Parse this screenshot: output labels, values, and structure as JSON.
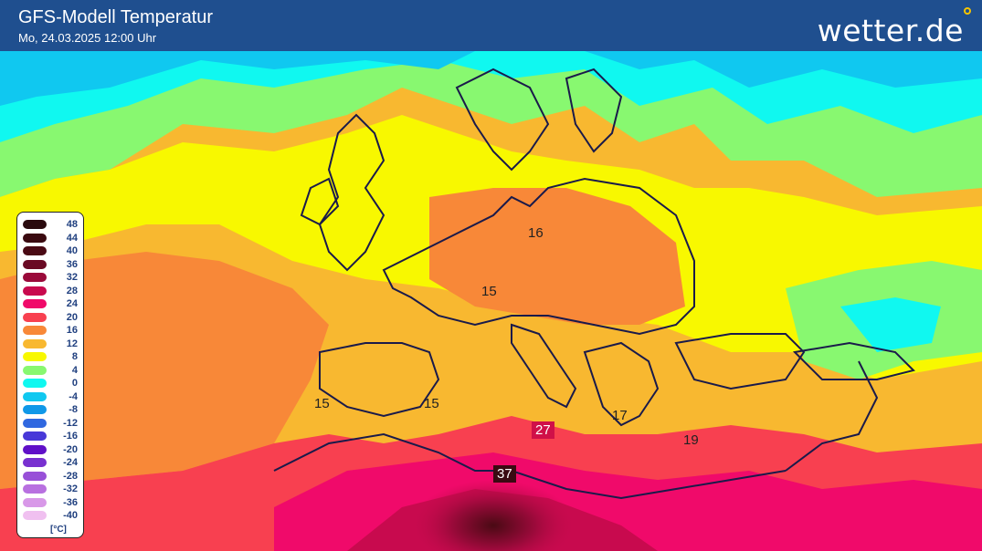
{
  "header": {
    "title": "GFS-Modell Temperatur",
    "subtitle": "Mo, 24.03.2025 12:00 Uhr",
    "logo": "wetter.de",
    "bg_color": "#1f4f8f"
  },
  "legend": {
    "items": [
      {
        "label": "48",
        "color": "#2a0a0e"
      },
      {
        "label": "44",
        "color": "#3a0a10"
      },
      {
        "label": "40",
        "color": "#4a0a14"
      },
      {
        "label": "36",
        "color": "#6a0a24"
      },
      {
        "label": "32",
        "color": "#9a0a3a"
      },
      {
        "label": "28",
        "color": "#c80a4e"
      },
      {
        "label": "24",
        "color": "#f00a6a"
      },
      {
        "label": "20",
        "color": "#f84050"
      },
      {
        "label": "16",
        "color": "#f88838"
      },
      {
        "label": "12",
        "color": "#f8b830"
      },
      {
        "label": "8",
        "color": "#f8f800"
      },
      {
        "label": "4",
        "color": "#88f870"
      },
      {
        "label": "0",
        "color": "#10f8f0"
      },
      {
        "label": "-4",
        "color": "#10c8f0"
      },
      {
        "label": "-8",
        "color": "#1098e8"
      },
      {
        "label": "-12",
        "color": "#3068e0"
      },
      {
        "label": "-16",
        "color": "#4838d8"
      },
      {
        "label": "-20",
        "color": "#6010c8"
      },
      {
        "label": "-24",
        "color": "#7830d0"
      },
      {
        "label": "-28",
        "color": "#9850d8"
      },
      {
        "label": "-32",
        "color": "#b870e0"
      },
      {
        "label": "-36",
        "color": "#d898e8"
      },
      {
        "label": "-40",
        "color": "#f0c0f0"
      }
    ],
    "unit": "[°C]"
  },
  "cities": [
    {
      "value": "16",
      "style": "plain"
    },
    {
      "value": "15",
      "style": "plain"
    },
    {
      "value": "15",
      "style": "plain"
    },
    {
      "value": "15",
      "style": "plain"
    },
    {
      "value": "27",
      "style": "red"
    },
    {
      "value": "17",
      "style": "plain"
    },
    {
      "value": "19",
      "style": "plain"
    },
    {
      "value": "37",
      "style": "dark"
    }
  ]
}
